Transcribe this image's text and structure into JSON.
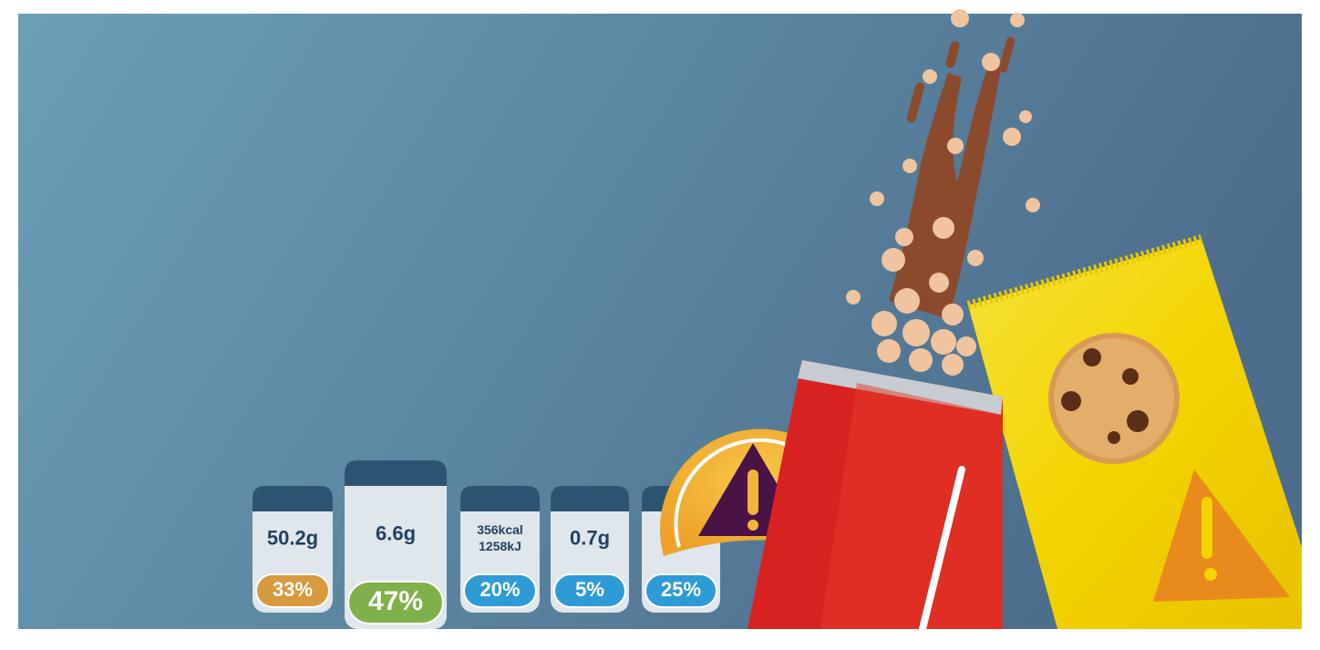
{
  "labels": [
    {
      "amount": "50.2g",
      "percent": "33%"
    },
    {
      "amount": "6.6g",
      "percent": "47%"
    },
    {
      "amount_lines": [
        "356kcal",
        "1258kJ"
      ],
      "percent": "20%"
    },
    {
      "amount": "0.7g",
      "percent": "5%"
    },
    {
      "percent": "25%"
    }
  ]
}
